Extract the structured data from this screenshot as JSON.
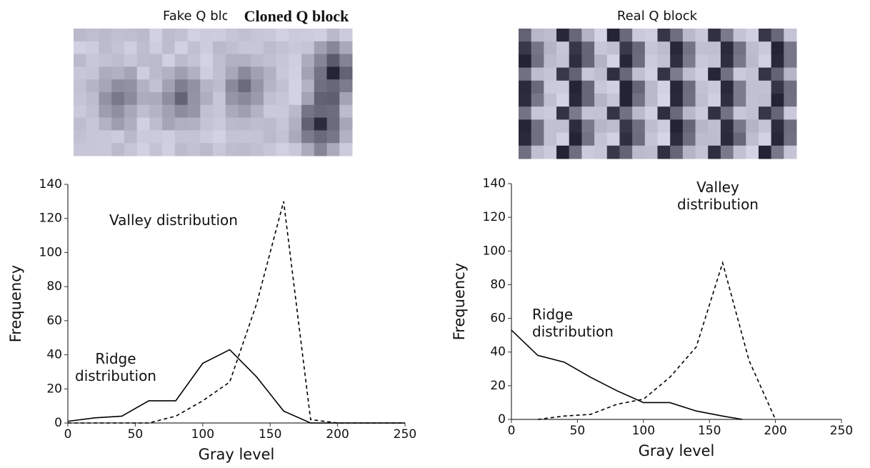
{
  "chart_data": [
    {
      "type": "line",
      "title": "Cloned Q block",
      "hidden_title": "Fake Q block",
      "x_label": "Gray level",
      "y_label": "Frequency",
      "xlim": [
        0,
        250
      ],
      "xticks": [
        0,
        50,
        100,
        150,
        200,
        250
      ],
      "ylim": [
        0,
        140
      ],
      "yticks": [
        0,
        20,
        40,
        60,
        80,
        100,
        120,
        140
      ],
      "series": [
        {
          "name": "Ridge\ndistribution",
          "color": "#000000",
          "style": "solid",
          "x": [
            0,
            20,
            40,
            60,
            80,
            100,
            120,
            140,
            160,
            180,
            200,
            250
          ],
          "values": [
            1,
            3,
            4,
            13,
            13,
            35,
            43,
            27,
            7,
            0,
            0,
            0
          ]
        },
        {
          "name": "Valley distribution",
          "color": "#000000",
          "style": "dashed",
          "x": [
            0,
            60,
            80,
            100,
            120,
            140,
            160,
            180,
            200,
            250
          ],
          "values": [
            0,
            0,
            4,
            13,
            24,
            70,
            130,
            2,
            0,
            0
          ]
        }
      ]
    },
    {
      "type": "line",
      "title": "Real Q block",
      "x_label": "Gray level",
      "y_label": "Frequency",
      "xlim": [
        0,
        250
      ],
      "xticks": [
        0,
        50,
        100,
        150,
        200,
        250
      ],
      "ylim": [
        0,
        140
      ],
      "yticks": [
        0,
        20,
        40,
        60,
        80,
        100,
        120,
        140
      ],
      "series": [
        {
          "name": "Ridge\ndistribution",
          "color": "#000000",
          "style": "solid",
          "x": [
            0,
            20,
            40,
            60,
            80,
            100,
            120,
            140,
            160,
            175
          ],
          "values": [
            53,
            38,
            34,
            25,
            17,
            10,
            10,
            5,
            2,
            0
          ]
        },
        {
          "name": "Valley\ndistribution",
          "color": "#000000",
          "style": "dashed",
          "x": [
            20,
            40,
            60,
            80,
            100,
            120,
            140,
            160,
            180,
            200
          ],
          "values": [
            0,
            2,
            3,
            9,
            12,
            25,
            43,
            93,
            35,
            0
          ]
        }
      ]
    }
  ]
}
